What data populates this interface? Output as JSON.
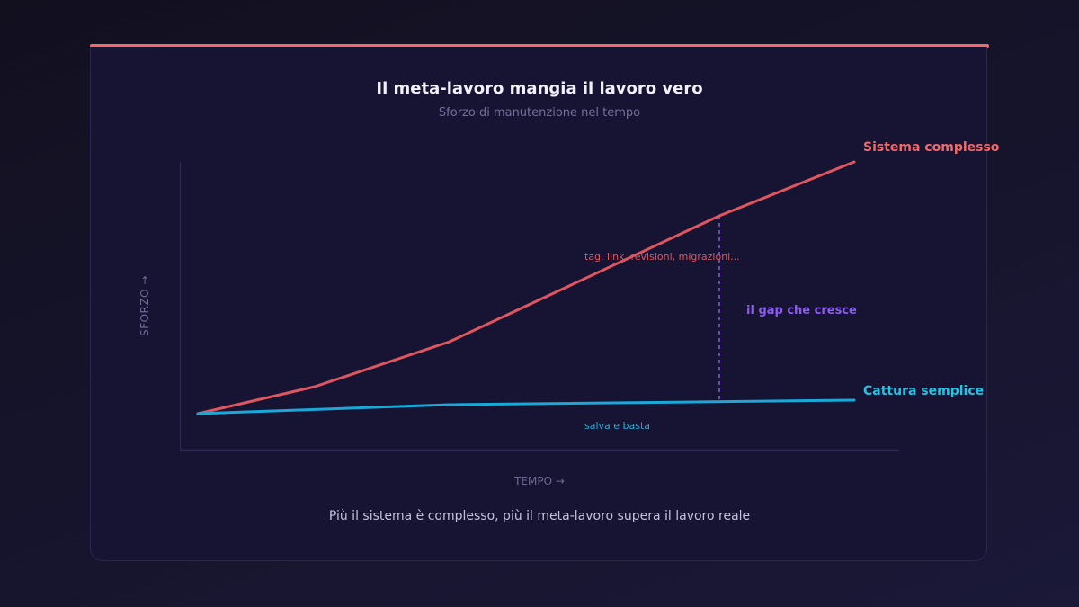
{
  "colors": {
    "accent_bar": "#f06a6a",
    "complex": "#e0565e",
    "complex_label": "#f06a6a",
    "simple": "#1aa8d8",
    "simple_label": "#22c4e6",
    "gap": "#8a5cf0",
    "axis": "#2e2a52"
  },
  "header": {
    "title": "Il meta-lavoro mangia il lavoro vero",
    "subtitle": "Sforzo di manutenzione nel tempo"
  },
  "footer": {
    "caption": "Più il sistema è complesso, più il meta-lavoro supera il lavoro reale"
  },
  "chart_data": {
    "type": "line",
    "title": "Il meta-lavoro mangia il lavoro vero",
    "subtitle": "Sforzo di manutenzione nel tempo",
    "xlabel": "TEMPO →",
    "ylabel": "SFORZO →",
    "grid": false,
    "legend": "inline labels at line ends",
    "x": [
      0,
      1,
      2,
      3,
      4
    ],
    "series": [
      {
        "name": "Sistema complesso",
        "values": [
          1.0,
          1.9,
          3.4,
          7.6,
          9.4
        ],
        "annotation": "tag, link, revisioni, migrazioni..."
      },
      {
        "name": "Cattura semplice",
        "values": [
          1.0,
          null,
          1.3,
          null,
          1.45
        ],
        "annotation": "salva e basta"
      }
    ],
    "annotations": [
      {
        "text": "il gap che cresce",
        "type": "dashed vertical gap marker",
        "x": 3
      }
    ],
    "ylim": [
      0,
      10
    ],
    "notes": "Qualitative chart, no numeric ticks shown"
  },
  "labels": {
    "complex_name": "Sistema complesso",
    "complex_note": "tag, link, revisioni, migrazioni...",
    "simple_name": "Cattura semplice",
    "simple_note": "salva e basta",
    "gap": "il gap che cresce",
    "x_axis": "TEMPO →",
    "y_axis": "SFORZO →"
  },
  "geometry": {
    "complex_points": "220,460 350,430 500,380 800,240 950,180",
    "simple_points": "220,460 500,450 950,445"
  }
}
